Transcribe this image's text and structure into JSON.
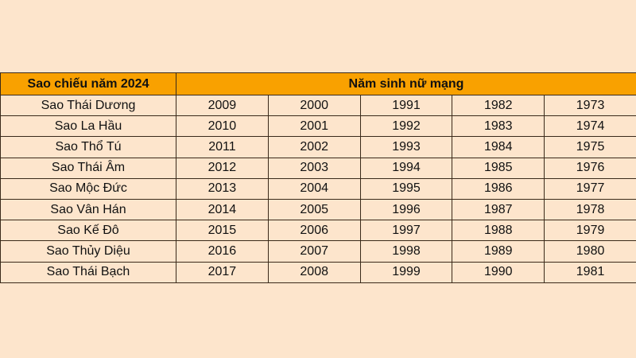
{
  "header": {
    "star_col": "Sao chiếu năm 2024",
    "year_col": "Năm sinh nữ mạng"
  },
  "rows": [
    {
      "star": "Sao Thái Dương",
      "years": [
        "2009",
        "2000",
        "1991",
        "1982",
        "1973"
      ]
    },
    {
      "star": "Sao La Hầu",
      "years": [
        "2010",
        "2001",
        "1992",
        "1983",
        "1974"
      ]
    },
    {
      "star": "Sao Thổ Tú",
      "years": [
        "2011",
        "2002",
        "1993",
        "1984",
        "1975"
      ]
    },
    {
      "star": "Sao Thái Âm",
      "years": [
        "2012",
        "2003",
        "1994",
        "1985",
        "1976"
      ]
    },
    {
      "star": "Sao Mộc Đức",
      "years": [
        "2013",
        "2004",
        "1995",
        "1986",
        "1977"
      ]
    },
    {
      "star": "Sao Vân Hán",
      "years": [
        "2014",
        "2005",
        "1996",
        "1987",
        "1978"
      ]
    },
    {
      "star": "Sao Kế Đô",
      "years": [
        "2015",
        "2006",
        "1997",
        "1988",
        "1979"
      ]
    },
    {
      "star": "Sao Thủy Diệu",
      "years": [
        "2016",
        "2007",
        "1998",
        "1989",
        "1980"
      ]
    },
    {
      "star": "Sao Thái Bạch",
      "years": [
        "2017",
        "2008",
        "1999",
        "1990",
        "1981"
      ]
    }
  ]
}
